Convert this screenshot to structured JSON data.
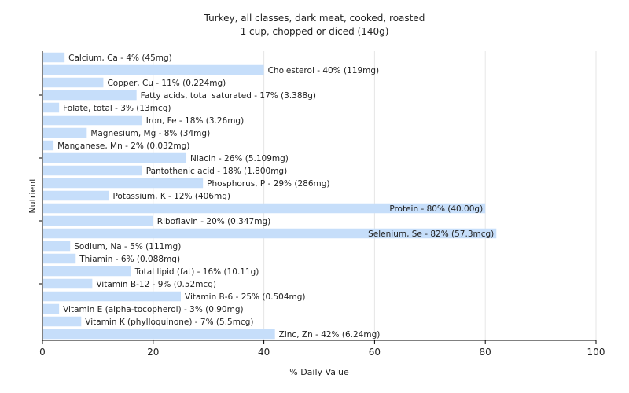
{
  "chart_data": {
    "type": "bar",
    "orientation": "horizontal",
    "title": "Turkey, all classes, dark meat, cooked, roasted",
    "subtitle": "1 cup, chopped or diced (140g)",
    "xlabel": "% Daily Value",
    "ylabel": "Nutrient",
    "xlim": [
      0,
      100
    ],
    "xticks": [
      0,
      20,
      40,
      60,
      80,
      100
    ],
    "grid": true,
    "bar_color": "#c6defa",
    "categories": [
      "Calcium, Ca",
      "Cholesterol",
      "Copper, Cu",
      "Fatty acids, total saturated",
      "Folate, total",
      "Iron, Fe",
      "Magnesium, Mg",
      "Manganese, Mn",
      "Niacin",
      "Pantothenic acid",
      "Phosphorus, P",
      "Potassium, K",
      "Protein",
      "Riboflavin",
      "Selenium, Se",
      "Sodium, Na",
      "Thiamin",
      "Total lipid (fat)",
      "Vitamin B-12",
      "Vitamin B-6",
      "Vitamin E (alpha-tocopherol)",
      "Vitamin K (phylloquinone)",
      "Zinc, Zn"
    ],
    "values": [
      4,
      40,
      11,
      17,
      3,
      18,
      8,
      2,
      26,
      18,
      29,
      12,
      80,
      20,
      82,
      5,
      6,
      16,
      9,
      25,
      3,
      7,
      42
    ],
    "labels": [
      "Calcium, Ca - 4% (45mg)",
      "Cholesterol - 40% (119mg)",
      "Copper, Cu - 11% (0.224mg)",
      "Fatty acids, total saturated - 17% (3.388g)",
      "Folate, total - 3% (13mcg)",
      "Iron, Fe - 18% (3.26mg)",
      "Magnesium, Mg - 8% (34mg)",
      "Manganese, Mn - 2% (0.032mg)",
      "Niacin - 26% (5.109mg)",
      "Pantothenic acid - 18% (1.800mg)",
      "Phosphorus, P - 29% (286mg)",
      "Potassium, K - 12% (406mg)",
      "Protein - 80% (40.00g)",
      "Riboflavin - 20% (0.347mg)",
      "Selenium, Se - 82% (57.3mcg)",
      "Sodium, Na - 5% (111mg)",
      "Thiamin - 6% (0.088mg)",
      "Total lipid (fat) - 16% (10.11g)",
      "Vitamin B-12 - 9% (0.52mcg)",
      "Vitamin B-6 - 25% (0.504mg)",
      "Vitamin E (alpha-tocopherol) - 3% (0.90mg)",
      "Vitamin K (phylloquinone) - 7% (5.5mcg)",
      "Zinc, Zn - 42% (6.24mg)"
    ]
  }
}
